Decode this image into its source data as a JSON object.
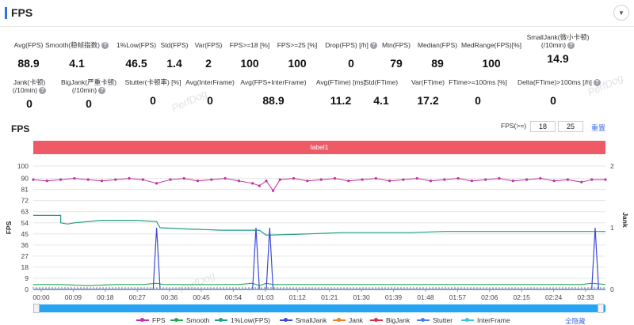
{
  "header": {
    "title": "FPS"
  },
  "stats_row1": [
    {
      "label": "Avg(FPS)",
      "value": "88.9",
      "help": false
    },
    {
      "label": "Smooth(稳帧指数)",
      "value": "4.1",
      "help": true
    },
    {
      "label": "1%Low(FPS)",
      "value": "46.5",
      "help": false
    },
    {
      "label": "Std(FPS)",
      "value": "1.4",
      "help": false
    },
    {
      "label": "Var(FPS)",
      "value": "2",
      "help": false
    },
    {
      "label": "FPS>=18 [%]",
      "value": "100",
      "help": false
    },
    {
      "label": "FPS>=25 [%]",
      "value": "100",
      "help": false
    },
    {
      "label": "Drop(FPS) [/h]",
      "value": "0",
      "help": true
    },
    {
      "label": "Min(FPS)",
      "value": "79",
      "help": false
    },
    {
      "label": "Median(FPS)",
      "value": "89",
      "help": false
    },
    {
      "label": "MedRange(FPS)[%]",
      "value": "100",
      "help": false
    },
    {
      "label": "SmallJank(微小卡顿)",
      "label2": "(/10min)",
      "value": "14.9",
      "help": true
    }
  ],
  "stats_row2": [
    {
      "label": "Jank(卡顿)",
      "label2": "(/10min)",
      "value": "0",
      "help": true
    },
    {
      "label": "BigJank(严重卡顿)",
      "label2": "(/10min)",
      "value": "0",
      "help": true
    },
    {
      "label": "Stutter(卡顿率) [%]",
      "value": "0",
      "help": false
    },
    {
      "label": "Avg(InterFrame)",
      "value": "0",
      "help": false
    },
    {
      "label": "Avg(FPS+InterFrame)",
      "value": "88.9",
      "help": false
    },
    {
      "label": "Avg(FTime) [ms]",
      "value": "11.2",
      "help": false
    },
    {
      "label": "Std(FTime)",
      "value": "4.1",
      "help": false
    },
    {
      "label": "Var(FTime)",
      "value": "17.2",
      "help": false
    },
    {
      "label": "FTime>=100ms [%]",
      "value": "0",
      "help": false
    },
    {
      "label": "Delta(FTime)>100ms [/h]",
      "value": "0",
      "help": true
    }
  ],
  "watermark": "PerfDog",
  "chart_section": {
    "title": "FPS",
    "filter_label": "FPS(>=)",
    "filter_value_1": "18",
    "filter_value_2": "25",
    "reset_label": "重置",
    "label_band": "label1",
    "hide_all_label": "全隐藏"
  },
  "chart_data": {
    "type": "line",
    "ylabel": "FPS",
    "y2label": "Jank",
    "ylim": [
      0,
      100
    ],
    "y2lim": [
      0,
      2
    ],
    "yticks": [
      0,
      9,
      18,
      27,
      36,
      45,
      54,
      63,
      72,
      81,
      90,
      100
    ],
    "y2ticks": [
      0,
      1,
      2
    ],
    "xlim": [
      0,
      167
    ],
    "xticks": [
      "00:00",
      "00:09",
      "00:18",
      "00:27",
      "00:36",
      "00:45",
      "00:54",
      "01:03",
      "01:12",
      "01:21",
      "01:30",
      "01:39",
      "01:48",
      "01:57",
      "02:06",
      "02:15",
      "02:24",
      "02:33"
    ],
    "legend_position": "bottom",
    "series": [
      {
        "name": "FPS",
        "color": "#c02fa8",
        "axis": "left",
        "points": [
          [
            0,
            89
          ],
          [
            4,
            88
          ],
          [
            8,
            89
          ],
          [
            12,
            90
          ],
          [
            16,
            89
          ],
          [
            20,
            88
          ],
          [
            24,
            89
          ],
          [
            28,
            90
          ],
          [
            32,
            89
          ],
          [
            36,
            86
          ],
          [
            40,
            89
          ],
          [
            44,
            90
          ],
          [
            48,
            88
          ],
          [
            52,
            89
          ],
          [
            56,
            90
          ],
          [
            60,
            88
          ],
          [
            64,
            86
          ],
          [
            66,
            84
          ],
          [
            68,
            88
          ],
          [
            70,
            80
          ],
          [
            72,
            89
          ],
          [
            76,
            90
          ],
          [
            80,
            88
          ],
          [
            84,
            89
          ],
          [
            88,
            90
          ],
          [
            92,
            88
          ],
          [
            96,
            89
          ],
          [
            100,
            90
          ],
          [
            104,
            88
          ],
          [
            108,
            89
          ],
          [
            112,
            90
          ],
          [
            116,
            88
          ],
          [
            120,
            89
          ],
          [
            124,
            90
          ],
          [
            128,
            88
          ],
          [
            132,
            89
          ],
          [
            136,
            90
          ],
          [
            140,
            88
          ],
          [
            144,
            89
          ],
          [
            148,
            90
          ],
          [
            152,
            88
          ],
          [
            156,
            89
          ],
          [
            160,
            87
          ],
          [
            163,
            89
          ],
          [
            167,
            89
          ]
        ]
      },
      {
        "name": "Smooth",
        "color": "#27a84a",
        "axis": "left",
        "points": [
          [
            0,
            4
          ],
          [
            8,
            4
          ],
          [
            16,
            3
          ],
          [
            24,
            4
          ],
          [
            32,
            4
          ],
          [
            36,
            5
          ],
          [
            38,
            4
          ],
          [
            50,
            4
          ],
          [
            60,
            4
          ],
          [
            64,
            5
          ],
          [
            66,
            3
          ],
          [
            68,
            5
          ],
          [
            70,
            4
          ],
          [
            80,
            4
          ],
          [
            100,
            4
          ],
          [
            120,
            4
          ],
          [
            140,
            4
          ],
          [
            160,
            4
          ],
          [
            163,
            5
          ],
          [
            167,
            4
          ]
        ]
      },
      {
        "name": "1%Low(FPS)",
        "color": "#1f9e85",
        "axis": "left",
        "points": [
          [
            0,
            60
          ],
          [
            8,
            60
          ],
          [
            8,
            54
          ],
          [
            10,
            53
          ],
          [
            12,
            54
          ],
          [
            20,
            56
          ],
          [
            30,
            56
          ],
          [
            36,
            55
          ],
          [
            37,
            50
          ],
          [
            45,
            49
          ],
          [
            55,
            48
          ],
          [
            66,
            48
          ],
          [
            68,
            44
          ],
          [
            80,
            45
          ],
          [
            90,
            46
          ],
          [
            100,
            46
          ],
          [
            110,
            46
          ],
          [
            120,
            47
          ],
          [
            130,
            47
          ],
          [
            140,
            47
          ],
          [
            150,
            47
          ],
          [
            160,
            47
          ],
          [
            167,
            47
          ]
        ]
      },
      {
        "name": "SmallJank",
        "color": "#3c4ad6",
        "axis": "right",
        "points": [
          [
            0,
            0
          ],
          [
            35,
            0
          ],
          [
            36,
            1
          ],
          [
            37,
            0
          ],
          [
            64,
            0
          ],
          [
            65,
            1
          ],
          [
            66,
            0
          ],
          [
            68,
            0
          ],
          [
            69,
            1
          ],
          [
            70,
            0
          ],
          [
            163,
            0
          ],
          [
            164,
            1
          ],
          [
            165,
            0
          ],
          [
            167,
            0
          ]
        ]
      },
      {
        "name": "Jank",
        "color": "#f0821e",
        "axis": "right",
        "points": [
          [
            0,
            0
          ],
          [
            167,
            0
          ]
        ]
      },
      {
        "name": "BigJank",
        "color": "#d9304a",
        "axis": "right",
        "points": [
          [
            0,
            0
          ],
          [
            167,
            0
          ]
        ]
      },
      {
        "name": "Stutter",
        "color": "#4f7be8",
        "axis": "right",
        "points": [
          [
            0,
            0
          ],
          [
            167,
            0
          ]
        ]
      },
      {
        "name": "InterFrame",
        "color": "#38c6d9",
        "axis": "left",
        "points": [
          [
            0,
            0
          ],
          [
            167,
            0
          ]
        ]
      }
    ]
  }
}
